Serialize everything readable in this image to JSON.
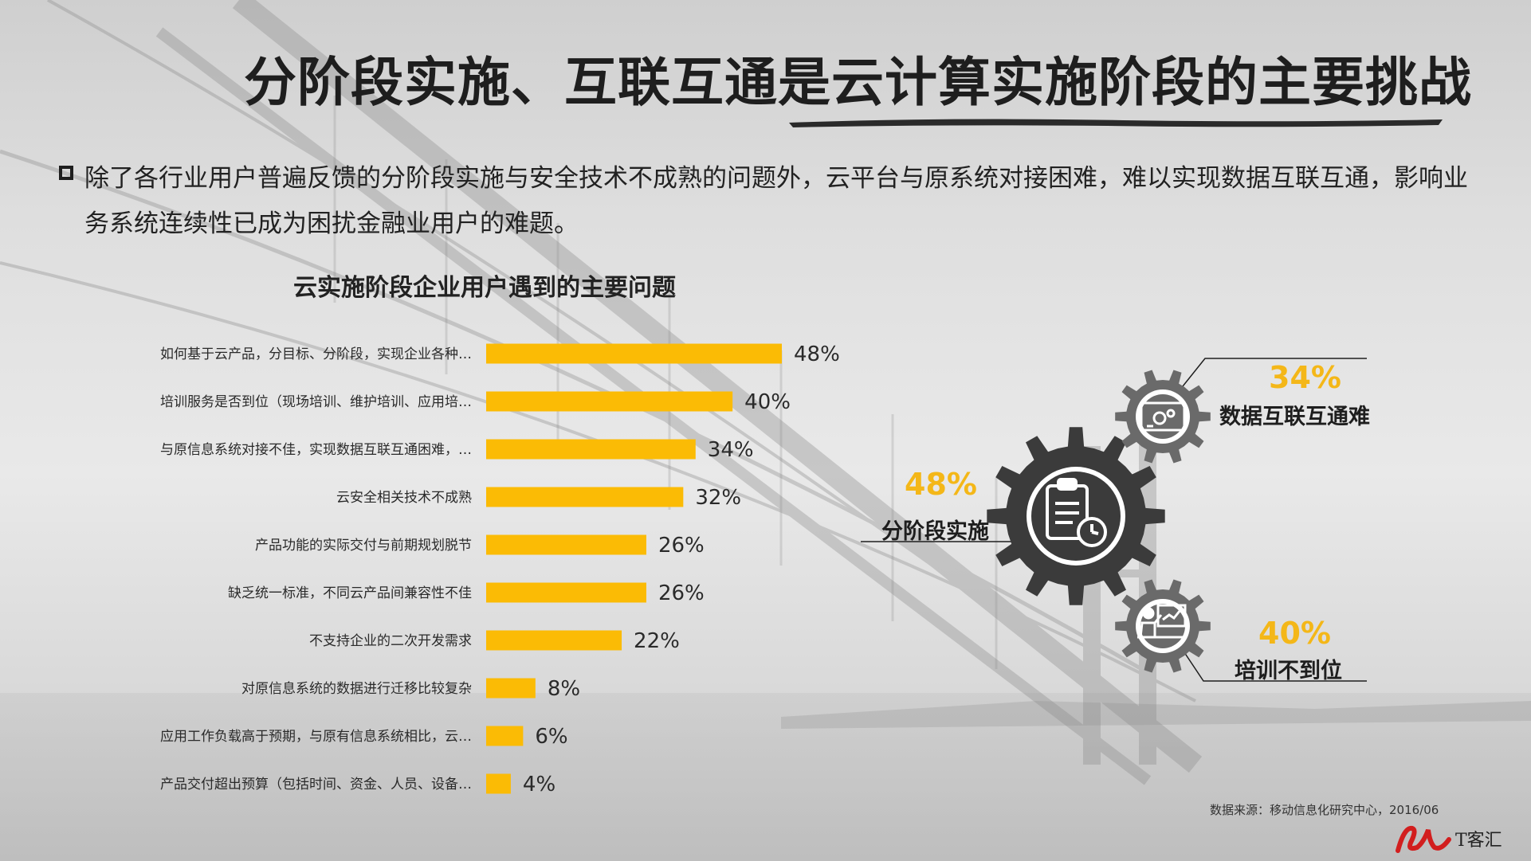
{
  "slide": {
    "title": "分阶段实施、互联互通是云计算实施阶段的主要挑战",
    "intro": "除了各行业用户普遍反馈的分阶段实施与安全技术不成熟的问题外，云平台与原系统对接困难，难以实现数据互联互通，影响业务系统连续性已成为困扰金融业用户的难题。",
    "source": "数据来源：移动信息化研究中心，2016/06",
    "logo_text": "T客汇",
    "colors": {
      "accent": "#fbbb05",
      "gear": "#3b3b3b",
      "gear_small": "#6a6a6a"
    }
  },
  "chart_data": {
    "type": "bar",
    "orientation": "horizontal",
    "title": "云实施阶段企业用户遇到的主要问题",
    "unit": "%",
    "categories": [
      "如何基于云产品，分目标、分阶段，实现企业各种…",
      "培训服务是否到位（现场培训、维护培训、应用培…",
      "与原信息系统对接不佳，实现数据互联互通困难，…",
      "云安全相关技术不成熟",
      "产品功能的实际交付与前期规划脱节",
      "缺乏统一标准，不同云产品间兼容性不佳",
      "不支持企业的二次开发需求",
      "对原信息系统的数据进行迁移比较复杂",
      "应用工作负载高于预期，与原有信息系统相比，云…",
      "产品交付超出预算（包括时间、资金、人员、设备…"
    ],
    "values": [
      48,
      40,
      34,
      32,
      26,
      26,
      22,
      8,
      6,
      4
    ],
    "value_labels": [
      "48%",
      "40%",
      "34%",
      "32%",
      "26%",
      "26%",
      "22%",
      "8%",
      "6%",
      "4%"
    ],
    "xlim": [
      0,
      50
    ],
    "color": "#fbbb05",
    "grid": false
  },
  "gears": [
    {
      "id": "interconnect",
      "pct": "34%",
      "label": "数据互联互通难",
      "icon": "monitor-gears-icon"
    },
    {
      "id": "phased",
      "pct": "48%",
      "label": "分阶段实施",
      "icon": "clipboard-clock-icon"
    },
    {
      "id": "training",
      "pct": "40%",
      "label": "培训不到位",
      "icon": "presenter-board-icon"
    }
  ]
}
